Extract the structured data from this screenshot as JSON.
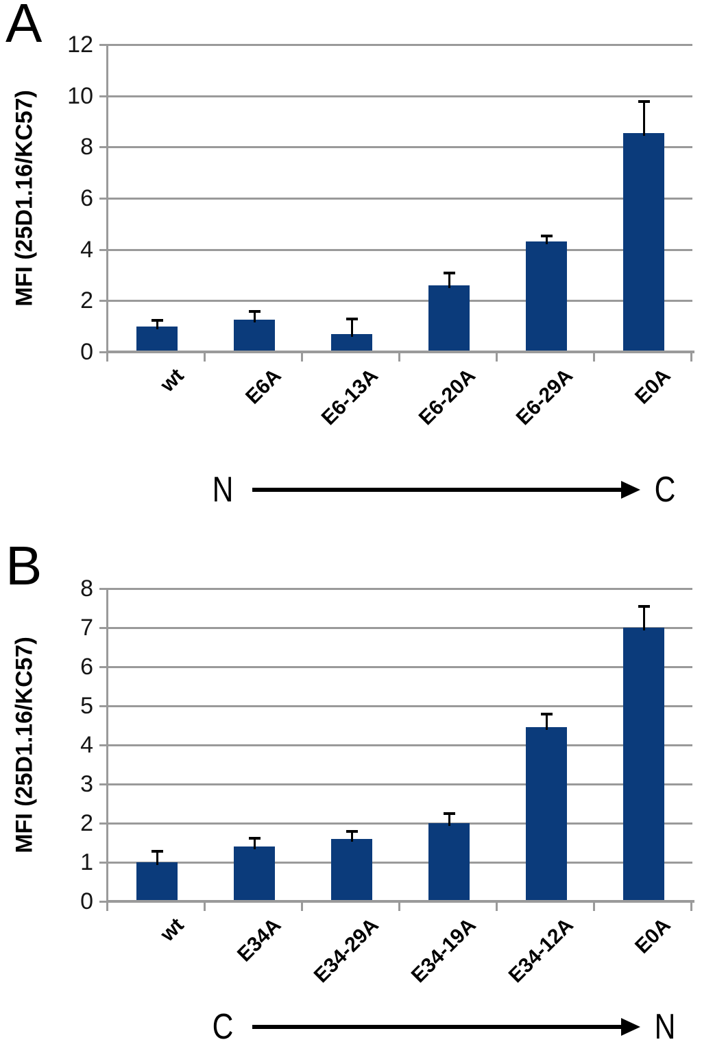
{
  "figure": {
    "background": "#ffffff",
    "bar_color": "#0b3b7b",
    "gridline_color": "#9a9a9a",
    "error_bar_color": "#000000"
  },
  "chart_data": [
    {
      "panel": "A",
      "type": "bar",
      "title": "",
      "xlabel": "",
      "ylabel": "MFI (25D1.16/KC57)",
      "categories": [
        "wt",
        "E6A",
        "E6-13A",
        "E6-20A",
        "E6-29A",
        "E0A"
      ],
      "values": [
        1.0,
        1.25,
        0.7,
        2.6,
        4.3,
        8.55
      ],
      "errors_plus": [
        0.2,
        0.3,
        0.55,
        0.45,
        0.2,
        1.2
      ],
      "ylim": [
        0,
        12
      ],
      "ytick_step": 2,
      "grid": true,
      "legend": "none",
      "arrow": {
        "from": "N",
        "to": "C"
      }
    },
    {
      "panel": "B",
      "type": "bar",
      "title": "",
      "xlabel": "",
      "ylabel": "MFI (25D1.16/KC57)",
      "categories": [
        "wt",
        "E34A",
        "E34-29A",
        "E34-19A",
        "E34-12A",
        "E0A"
      ],
      "values": [
        1.0,
        1.4,
        1.6,
        2.0,
        4.45,
        7.0
      ],
      "errors_plus": [
        0.27,
        0.2,
        0.18,
        0.22,
        0.32,
        0.53
      ],
      "ylim": [
        0,
        8
      ],
      "ytick_step": 1,
      "grid": true,
      "legend": "none",
      "arrow": {
        "from": "C",
        "to": "N"
      }
    }
  ]
}
